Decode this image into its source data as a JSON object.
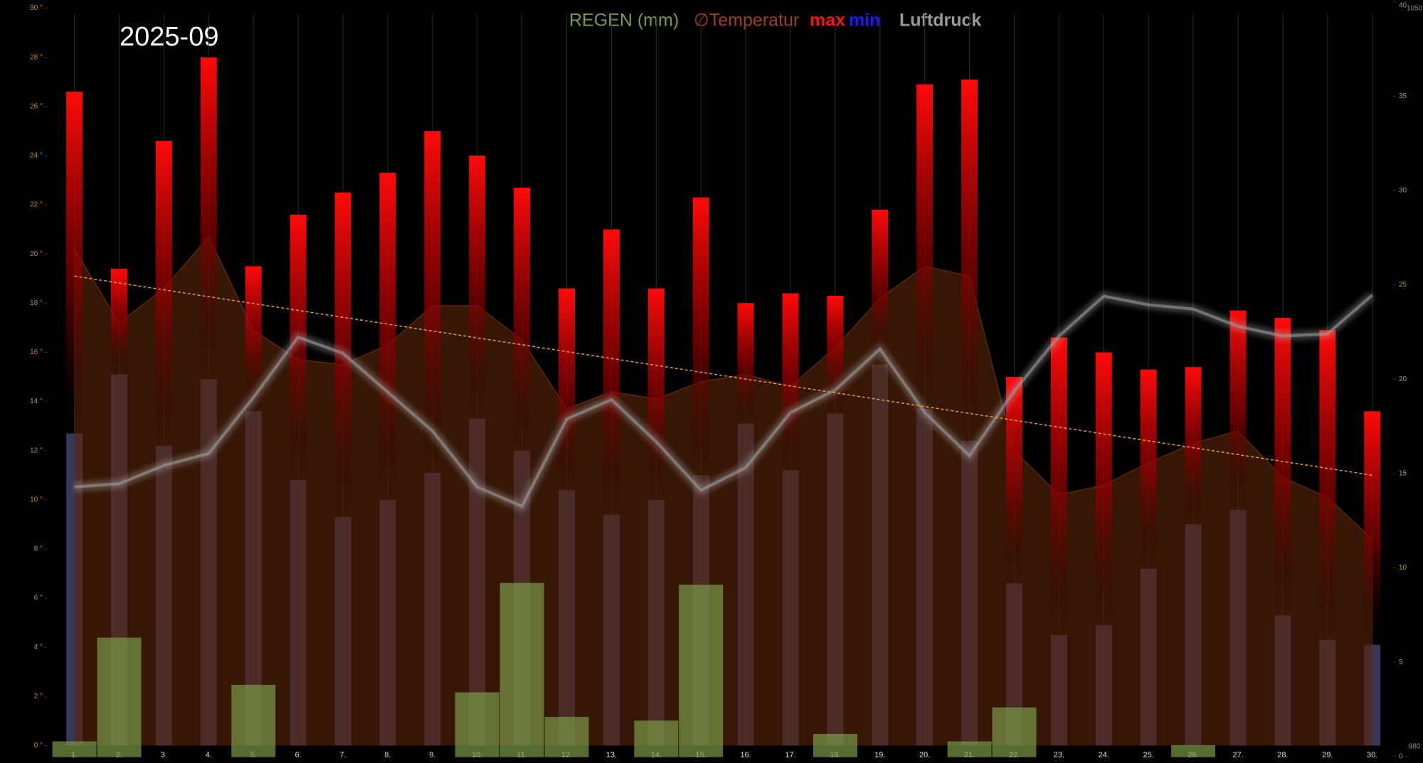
{
  "chart_data": {
    "type": "weather-combo",
    "title": "2025-09",
    "categories": [
      "1.",
      "2.",
      "3.",
      "4.",
      "5.",
      "6.",
      "7.",
      "8.",
      "9.",
      "10.",
      "11.",
      "12.",
      "13.",
      "14.",
      "15.",
      "16.",
      "17.",
      "18.",
      "19.",
      "20.",
      "21.",
      "22.",
      "23.",
      "24.",
      "25.",
      "26.",
      "27.",
      "28.",
      "29.",
      "30."
    ],
    "series": [
      {
        "name": "REGEN (mm)",
        "color": "#7a9a48",
        "axis": "y2",
        "values": [
          0.8,
          6.3,
          0,
          0,
          3.8,
          0,
          0,
          0,
          0,
          3.4,
          9.2,
          2.1,
          0,
          1.9,
          9.1,
          0,
          0,
          1.2,
          0,
          0,
          0.8,
          2.6,
          0,
          0,
          0,
          0.6,
          0,
          0,
          0,
          0
        ]
      },
      {
        "name": "∅Temperatur",
        "color": "#a0401c",
        "values": [
          20.2,
          17.2,
          18.6,
          20.7,
          16.9,
          15.7,
          15.5,
          16.3,
          17.9,
          17.9,
          16.5,
          13.7,
          14.4,
          14.1,
          14.8,
          15.1,
          14.6,
          16.2,
          18.2,
          19.5,
          19.1,
          12.0,
          10.2,
          10.6,
          11.5,
          12.3,
          12.8,
          10.9,
          10.1,
          8.4
        ]
      },
      {
        "name": "max",
        "color": "#ff0000",
        "values": [
          26.6,
          19.4,
          24.6,
          28.0,
          19.5,
          21.6,
          22.5,
          23.3,
          25.0,
          24.0,
          22.7,
          18.6,
          21.0,
          18.6,
          22.3,
          18.0,
          18.4,
          18.3,
          21.8,
          26.9,
          27.1,
          15.0,
          16.6,
          16.0,
          15.3,
          15.4,
          17.7,
          17.4,
          16.9,
          13.6
        ]
      },
      {
        "name": "min",
        "color": "#1a1aff",
        "values": [
          12.7,
          15.1,
          12.2,
          14.9,
          13.6,
          10.8,
          9.3,
          10.0,
          11.1,
          13.3,
          12.0,
          10.4,
          9.4,
          10.0,
          11.0,
          13.1,
          11.2,
          13.5,
          15.5,
          13.7,
          12.4,
          6.6,
          4.5,
          4.9,
          7.2,
          9.0,
          9.6,
          5.3,
          4.3,
          4.1
        ]
      },
      {
        "name": "Luftdruck",
        "color": "#9a9a9a",
        "axis": "y3",
        "values": [
          1005.0,
          1005.3,
          1007.0,
          1008.1,
          1013.3,
          1018.9,
          1017.4,
          1013.8,
          1010.2,
          1005.0,
          1003.2,
          1011.3,
          1013.1,
          1009.2,
          1004.7,
          1006.8,
          1011.9,
          1014.0,
          1017.8,
          1011.9,
          1007.9,
          1013.9,
          1019.0,
          1022.7,
          1021.9,
          1021.5,
          1019.9,
          1019.0,
          1019.2,
          1022.8
        ]
      }
    ],
    "trend": [
      19.1,
      11.0
    ],
    "ylim": [
      0,
      30
    ],
    "yticks": [
      {
        "value": 0,
        "label": "0 °"
      },
      {
        "value": 2,
        "label": "2 °"
      },
      {
        "value": 4,
        "label": "4 °"
      },
      {
        "value": 6,
        "label": "6 °"
      },
      {
        "value": 8,
        "label": "8 °"
      },
      {
        "value": 10,
        "label": "10 °"
      },
      {
        "value": 12,
        "label": "12 °"
      },
      {
        "value": 14,
        "label": "14 °"
      },
      {
        "value": 16,
        "label": "16 °"
      },
      {
        "value": 18,
        "label": "18 °"
      },
      {
        "value": 20,
        "label": "20 °"
      },
      {
        "value": 22,
        "label": "22 °"
      },
      {
        "value": 24,
        "label": "24 °"
      },
      {
        "value": 26,
        "label": "26 °"
      },
      {
        "value": 28,
        "label": "28 °"
      },
      {
        "value": 30,
        "label": "30 °"
      }
    ],
    "y2lim": [
      0,
      40
    ],
    "y2ticks": [
      0,
      5,
      10,
      15,
      20,
      25,
      30,
      35,
      40
    ],
    "y3lim": [
      980,
      1050
    ],
    "y3ticks": [
      980,
      1050
    ]
  }
}
